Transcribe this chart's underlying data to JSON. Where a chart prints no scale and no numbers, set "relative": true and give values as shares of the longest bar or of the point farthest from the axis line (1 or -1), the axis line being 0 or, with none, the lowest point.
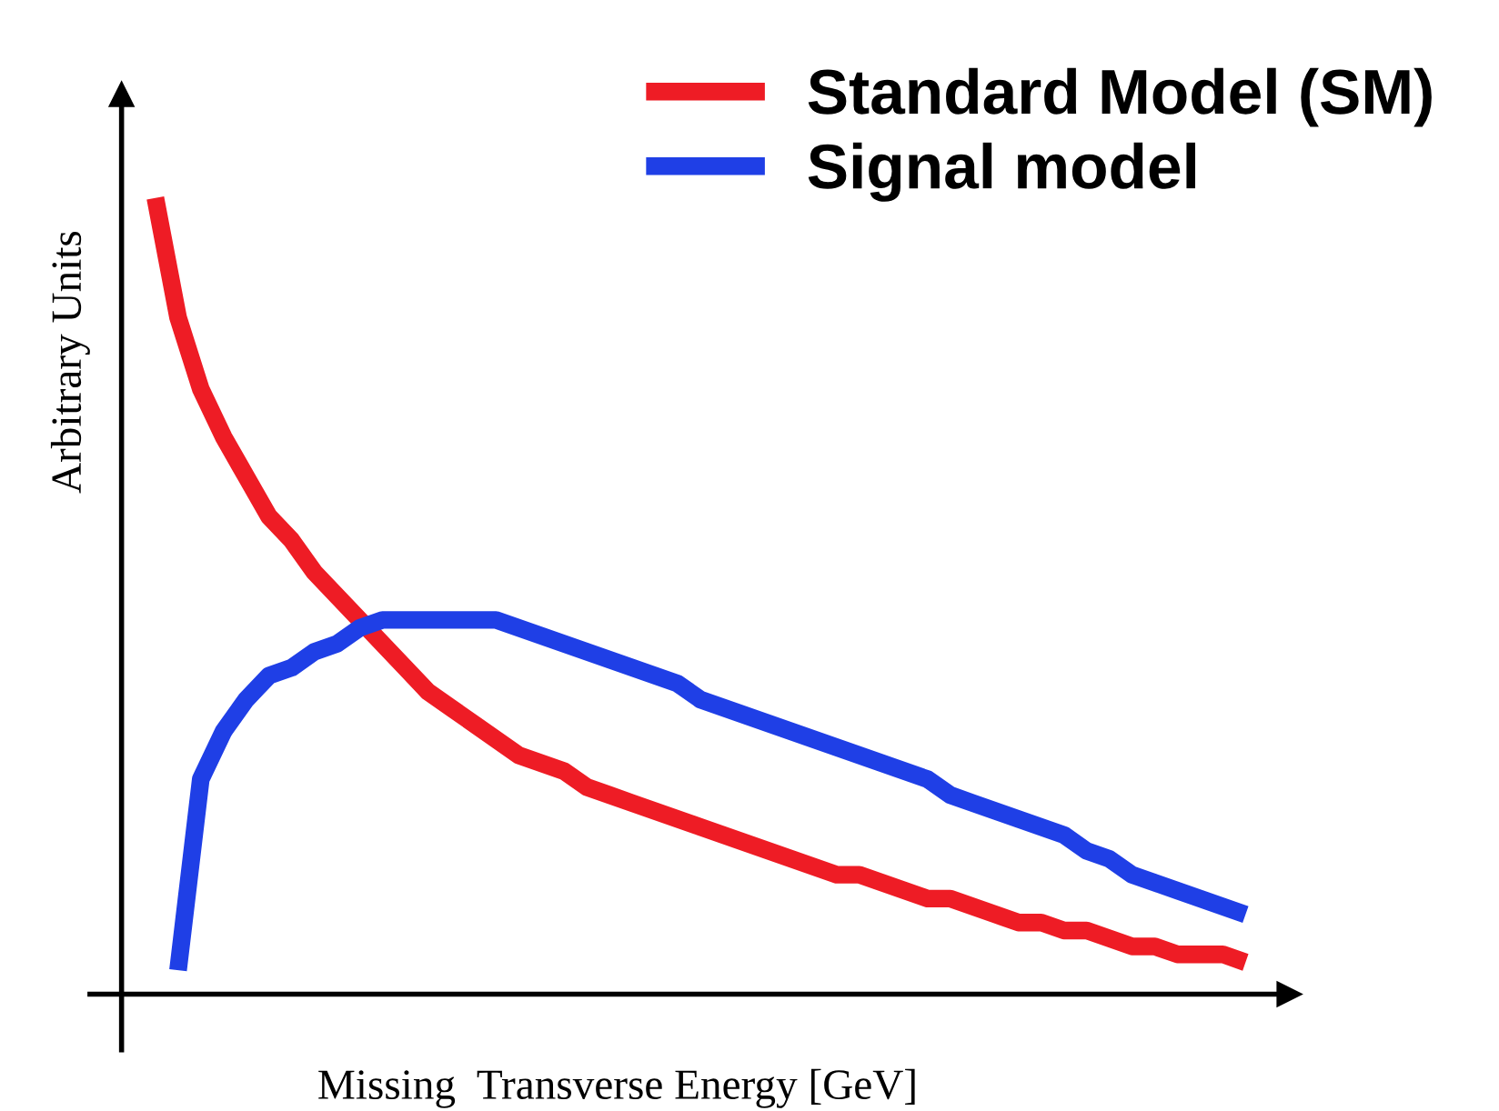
{
  "chart_data": {
    "type": "line",
    "relative": true,
    "xlabel": "Missing  Transverse Energy [GeV]",
    "ylabel": "Arbitrary Units",
    "legend": "top right",
    "marker": "none",
    "line_style": "solid",
    "categories": [
      null,
      null,
      null,
      null,
      null,
      null,
      null,
      null,
      null,
      null,
      null,
      null,
      null,
      null,
      null,
      null,
      null,
      null,
      null,
      null,
      null,
      null,
      null,
      null,
      null,
      null,
      null,
      null,
      null,
      null,
      null,
      null,
      null,
      null,
      null,
      null,
      null,
      null,
      null,
      null,
      null,
      null,
      null,
      null,
      null,
      null,
      null,
      null,
      null
    ],
    "series": [
      {
        "name": "Standard Model (SM)",
        "color": "#ee1c25",
        "values": [
          1.0,
          0.85,
          0.76,
          0.7,
          0.65,
          0.6,
          0.57,
          0.53,
          0.5,
          0.47,
          0.44,
          0.41,
          0.38,
          0.36,
          0.34,
          0.32,
          0.3,
          0.29,
          0.28,
          0.26,
          0.25,
          0.24,
          0.23,
          0.22,
          0.21,
          0.2,
          0.19,
          0.18,
          0.17,
          0.16,
          0.15,
          0.15,
          0.14,
          0.13,
          0.12,
          0.12,
          0.11,
          0.1,
          0.09,
          0.09,
          0.08,
          0.08,
          0.07,
          0.06,
          0.06,
          0.05,
          0.05,
          0.05,
          0.04
        ]
      },
      {
        "name": "Signal model",
        "color": "#1f3fe6",
        "values": [
          null,
          0.03,
          0.27,
          0.33,
          0.37,
          0.4,
          0.41,
          0.43,
          0.44,
          0.46,
          0.47,
          0.47,
          0.47,
          0.47,
          0.47,
          0.47,
          0.46,
          0.45,
          0.44,
          0.43,
          0.42,
          0.41,
          0.4,
          0.39,
          0.37,
          0.36,
          0.35,
          0.34,
          0.33,
          0.32,
          0.31,
          0.3,
          0.29,
          0.28,
          0.27,
          0.25,
          0.24,
          0.23,
          0.22,
          0.21,
          0.2,
          0.18,
          0.17,
          0.15,
          0.14,
          0.13,
          0.12,
          0.11,
          0.1
        ]
      }
    ]
  }
}
